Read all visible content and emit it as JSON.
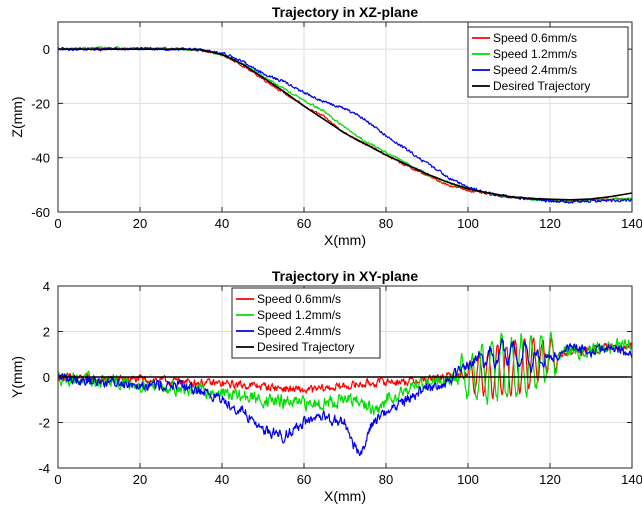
{
  "chart_data": [
    {
      "type": "line",
      "title": "Trajectory in XZ-plane",
      "xlabel": "X(mm)",
      "ylabel": "Z(mm)",
      "xlim": [
        0,
        140
      ],
      "ylim": [
        -60,
        10
      ],
      "xticks": [
        0,
        20,
        40,
        60,
        80,
        100,
        120,
        140
      ],
      "yticks": [
        -60,
        -40,
        -20,
        0
      ],
      "grid": true,
      "legend_position": "top-right",
      "series": [
        {
          "name": "Speed 0.6mm/s",
          "color": "#ff0000",
          "noise": 0.35,
          "points": [
            [
              0,
              0
            ],
            [
              10,
              0
            ],
            [
              20,
              0.3
            ],
            [
              30,
              0
            ],
            [
              35,
              -0.3
            ],
            [
              40,
              -2
            ],
            [
              45,
              -6
            ],
            [
              50,
              -11
            ],
            [
              55,
              -16
            ],
            [
              60,
              -21
            ],
            [
              65,
              -25
            ],
            [
              70,
              -31
            ],
            [
              75,
              -35
            ],
            [
              80,
              -39
            ],
            [
              85,
              -43
            ],
            [
              90,
              -46.5
            ],
            [
              95,
              -50
            ],
            [
              100,
              -52
            ],
            [
              105,
              -53.5
            ],
            [
              110,
              -54.5
            ],
            [
              115,
              -55
            ],
            [
              120,
              -55.5
            ],
            [
              125,
              -55.8
            ],
            [
              130,
              -55.5
            ],
            [
              135,
              -55.3
            ],
            [
              140,
              -55
            ]
          ]
        },
        {
          "name": "Speed 1.2mm/s",
          "color": "#00dd00",
          "noise": 0.35,
          "points": [
            [
              0,
              0
            ],
            [
              10,
              0.5
            ],
            [
              20,
              0.3
            ],
            [
              30,
              0
            ],
            [
              35,
              -0.3
            ],
            [
              40,
              -2
            ],
            [
              45,
              -5.5
            ],
            [
              50,
              -10
            ],
            [
              55,
              -14.5
            ],
            [
              60,
              -19
            ],
            [
              65,
              -23
            ],
            [
              70,
              -29
            ],
            [
              75,
              -34
            ],
            [
              80,
              -38
            ],
            [
              85,
              -42
            ],
            [
              90,
              -46
            ],
            [
              95,
              -49
            ],
            [
              100,
              -51.5
            ],
            [
              105,
              -53
            ],
            [
              110,
              -54.5
            ],
            [
              115,
              -55.2
            ],
            [
              120,
              -55.8
            ],
            [
              125,
              -56
            ],
            [
              130,
              -55.6
            ],
            [
              135,
              -55.3
            ],
            [
              140,
              -55
            ]
          ]
        },
        {
          "name": "Speed 2.4mm/s",
          "color": "#0000ee",
          "noise": 0.45,
          "points": [
            [
              0,
              0
            ],
            [
              10,
              0
            ],
            [
              20,
              0.2
            ],
            [
              30,
              0
            ],
            [
              35,
              -0.3
            ],
            [
              40,
              -1.5
            ],
            [
              45,
              -4.5
            ],
            [
              50,
              -9
            ],
            [
              55,
              -12
            ],
            [
              60,
              -16
            ],
            [
              65,
              -19.5
            ],
            [
              70,
              -22
            ],
            [
              75,
              -26
            ],
            [
              80,
              -32
            ],
            [
              85,
              -37
            ],
            [
              90,
              -42
            ],
            [
              95,
              -47
            ],
            [
              100,
              -51
            ],
            [
              105,
              -53
            ],
            [
              110,
              -54.5
            ],
            [
              115,
              -55.2
            ],
            [
              120,
              -56
            ],
            [
              125,
              -56.3
            ],
            [
              130,
              -56
            ],
            [
              135,
              -55.8
            ],
            [
              140,
              -55.5
            ]
          ]
        },
        {
          "name": "Desired Trajectory",
          "color": "#000000",
          "noise": 0,
          "points": [
            [
              0,
              0
            ],
            [
              30,
              0
            ],
            [
              35,
              -0.2
            ],
            [
              40,
              -2
            ],
            [
              45,
              -5.5
            ],
            [
              50,
              -10.5
            ],
            [
              55,
              -15.5
            ],
            [
              60,
              -21
            ],
            [
              65,
              -26
            ],
            [
              70,
              -31
            ],
            [
              75,
              -35
            ],
            [
              80,
              -39
            ],
            [
              85,
              -42.5
            ],
            [
              90,
              -46
            ],
            [
              95,
              -49
            ],
            [
              100,
              -51.5
            ],
            [
              105,
              -53
            ],
            [
              110,
              -54.3
            ],
            [
              115,
              -55
            ],
            [
              120,
              -55.3
            ],
            [
              125,
              -55.5
            ],
            [
              130,
              -55.2
            ],
            [
              135,
              -54.3
            ],
            [
              140,
              -53
            ]
          ]
        }
      ]
    },
    {
      "type": "line",
      "title": "Trajectory in XY-plane",
      "xlabel": "X(mm)",
      "ylabel": "Y(mm)",
      "xlim": [
        0,
        140
      ],
      "ylim": [
        -4,
        4
      ],
      "xticks": [
        0,
        20,
        40,
        60,
        80,
        100,
        120,
        140
      ],
      "yticks": [
        -4,
        -2,
        0,
        2,
        4
      ],
      "grid": true,
      "legend_position": "top-center",
      "series": [
        {
          "name": "Speed 0.6mm/s",
          "color": "#ff0000",
          "noise": 0.15,
          "points": [
            [
              0,
              0
            ],
            [
              10,
              -0.1
            ],
            [
              20,
              -0.1
            ],
            [
              30,
              -0.2
            ],
            [
              40,
              -0.3
            ],
            [
              50,
              -0.4
            ],
            [
              55,
              -0.5
            ],
            [
              60,
              -0.6
            ],
            [
              65,
              -0.5
            ],
            [
              70,
              -0.4
            ],
            [
              75,
              -0.3
            ],
            [
              80,
              -0.2
            ],
            [
              85,
              -0.2
            ],
            [
              90,
              -0.1
            ],
            [
              95,
              0
            ],
            [
              100,
              0.1
            ],
            [
              105,
              0.2
            ],
            [
              110,
              0.4
            ],
            [
              115,
              0.6
            ],
            [
              120,
              0.9
            ],
            [
              125,
              1.1
            ],
            [
              130,
              1.2
            ],
            [
              135,
              1.3
            ],
            [
              140,
              1.4
            ]
          ],
          "oscillation": {
            "from": 100,
            "to": 122,
            "amplitude": 1.1,
            "period": 2.2
          }
        },
        {
          "name": "Speed 1.2mm/s",
          "color": "#00dd00",
          "noise": 0.25,
          "points": [
            [
              0,
              0
            ],
            [
              10,
              -0.2
            ],
            [
              20,
              -0.3
            ],
            [
              30,
              -0.5
            ],
            [
              40,
              -0.7
            ],
            [
              50,
              -1
            ],
            [
              55,
              -1.1
            ],
            [
              60,
              -1.2
            ],
            [
              65,
              -1.1
            ],
            [
              70,
              -1
            ],
            [
              75,
              -1.2
            ],
            [
              78,
              -1.6
            ],
            [
              80,
              -1.0
            ],
            [
              85,
              -0.5
            ],
            [
              90,
              -0.2
            ],
            [
              95,
              -0.1
            ],
            [
              100,
              0
            ],
            [
              105,
              0.2
            ],
            [
              110,
              0.4
            ],
            [
              115,
              0.5
            ],
            [
              120,
              0.9
            ],
            [
              125,
              1.1
            ],
            [
              130,
              1.2
            ],
            [
              135,
              1.3
            ],
            [
              140,
              1.5
            ]
          ],
          "oscillation": {
            "from": 98,
            "to": 122,
            "amplitude": 1.4,
            "period": 2.4
          }
        },
        {
          "name": "Speed 2.4mm/s",
          "color": "#0000ee",
          "noise": 0.2,
          "points": [
            [
              0,
              0
            ],
            [
              10,
              -0.2
            ],
            [
              20,
              -0.3
            ],
            [
              30,
              -0.4
            ],
            [
              35,
              -0.6
            ],
            [
              40,
              -1
            ],
            [
              45,
              -1.5
            ],
            [
              50,
              -2.3
            ],
            [
              55,
              -2.6
            ],
            [
              60,
              -2
            ],
            [
              65,
              -1.8
            ],
            [
              70,
              -2
            ],
            [
              72,
              -3
            ],
            [
              74,
              -3.4
            ],
            [
              76,
              -2.2
            ],
            [
              80,
              -1.5
            ],
            [
              85,
              -1
            ],
            [
              90,
              -0.5
            ],
            [
              95,
              -0.2
            ],
            [
              100,
              0.6
            ],
            [
              105,
              0.9
            ],
            [
              110,
              1
            ],
            [
              115,
              0.8
            ],
            [
              120,
              0.8
            ],
            [
              125,
              1.3
            ],
            [
              130,
              1.1
            ],
            [
              135,
              1.3
            ],
            [
              140,
              0.9
            ]
          ],
          "oscillation": {
            "from": 102,
            "to": 120,
            "amplitude": 0.5,
            "period": 2.8
          }
        },
        {
          "name": "Desired Trajectory",
          "color": "#000000",
          "noise": 0,
          "points": [
            [
              0,
              0
            ],
            [
              140,
              0
            ]
          ]
        }
      ]
    }
  ]
}
